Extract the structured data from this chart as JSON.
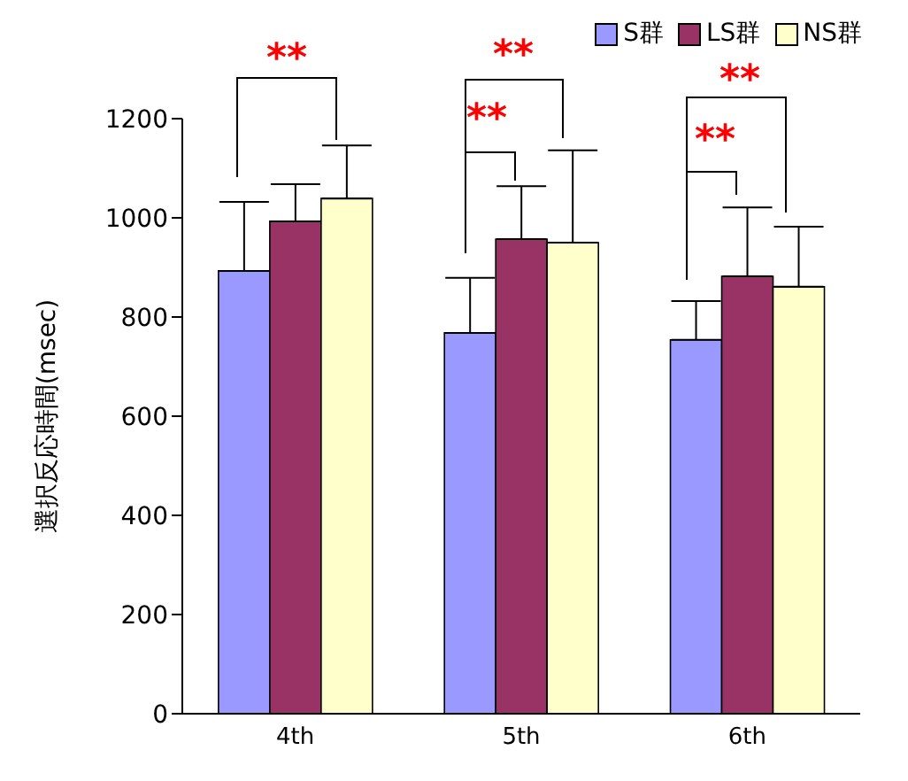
{
  "chart_data": {
    "type": "bar",
    "ylabel": "選択反応時間(msec)",
    "categories": [
      "4th",
      "5th",
      "6th"
    ],
    "series": [
      {
        "name": "S群",
        "color": "#9999ff",
        "values": [
          893,
          768,
          754
        ],
        "errors": [
          [
            893,
            1032
          ],
          [
            768,
            879
          ],
          [
            754,
            832
          ]
        ]
      },
      {
        "name": "LS群",
        "color": "#993366",
        "values": [
          993,
          957,
          882
        ],
        "errors": [
          [
            993,
            1068
          ],
          [
            957,
            1064
          ],
          [
            882,
            1021
          ]
        ]
      },
      {
        "name": "NS群",
        "color": "#ffffcc",
        "values": [
          1039,
          950,
          861
        ],
        "errors": [
          [
            1039,
            1146
          ],
          [
            950,
            1136
          ],
          [
            861,
            982
          ]
        ]
      }
    ],
    "ylim": [
      0,
      1200
    ],
    "yticks": [
      0,
      200,
      400,
      600,
      800,
      1000,
      1200
    ],
    "grid": false,
    "legend": "top right",
    "annotations": [
      "**",
      "**",
      "**",
      "**",
      "**"
    ]
  }
}
